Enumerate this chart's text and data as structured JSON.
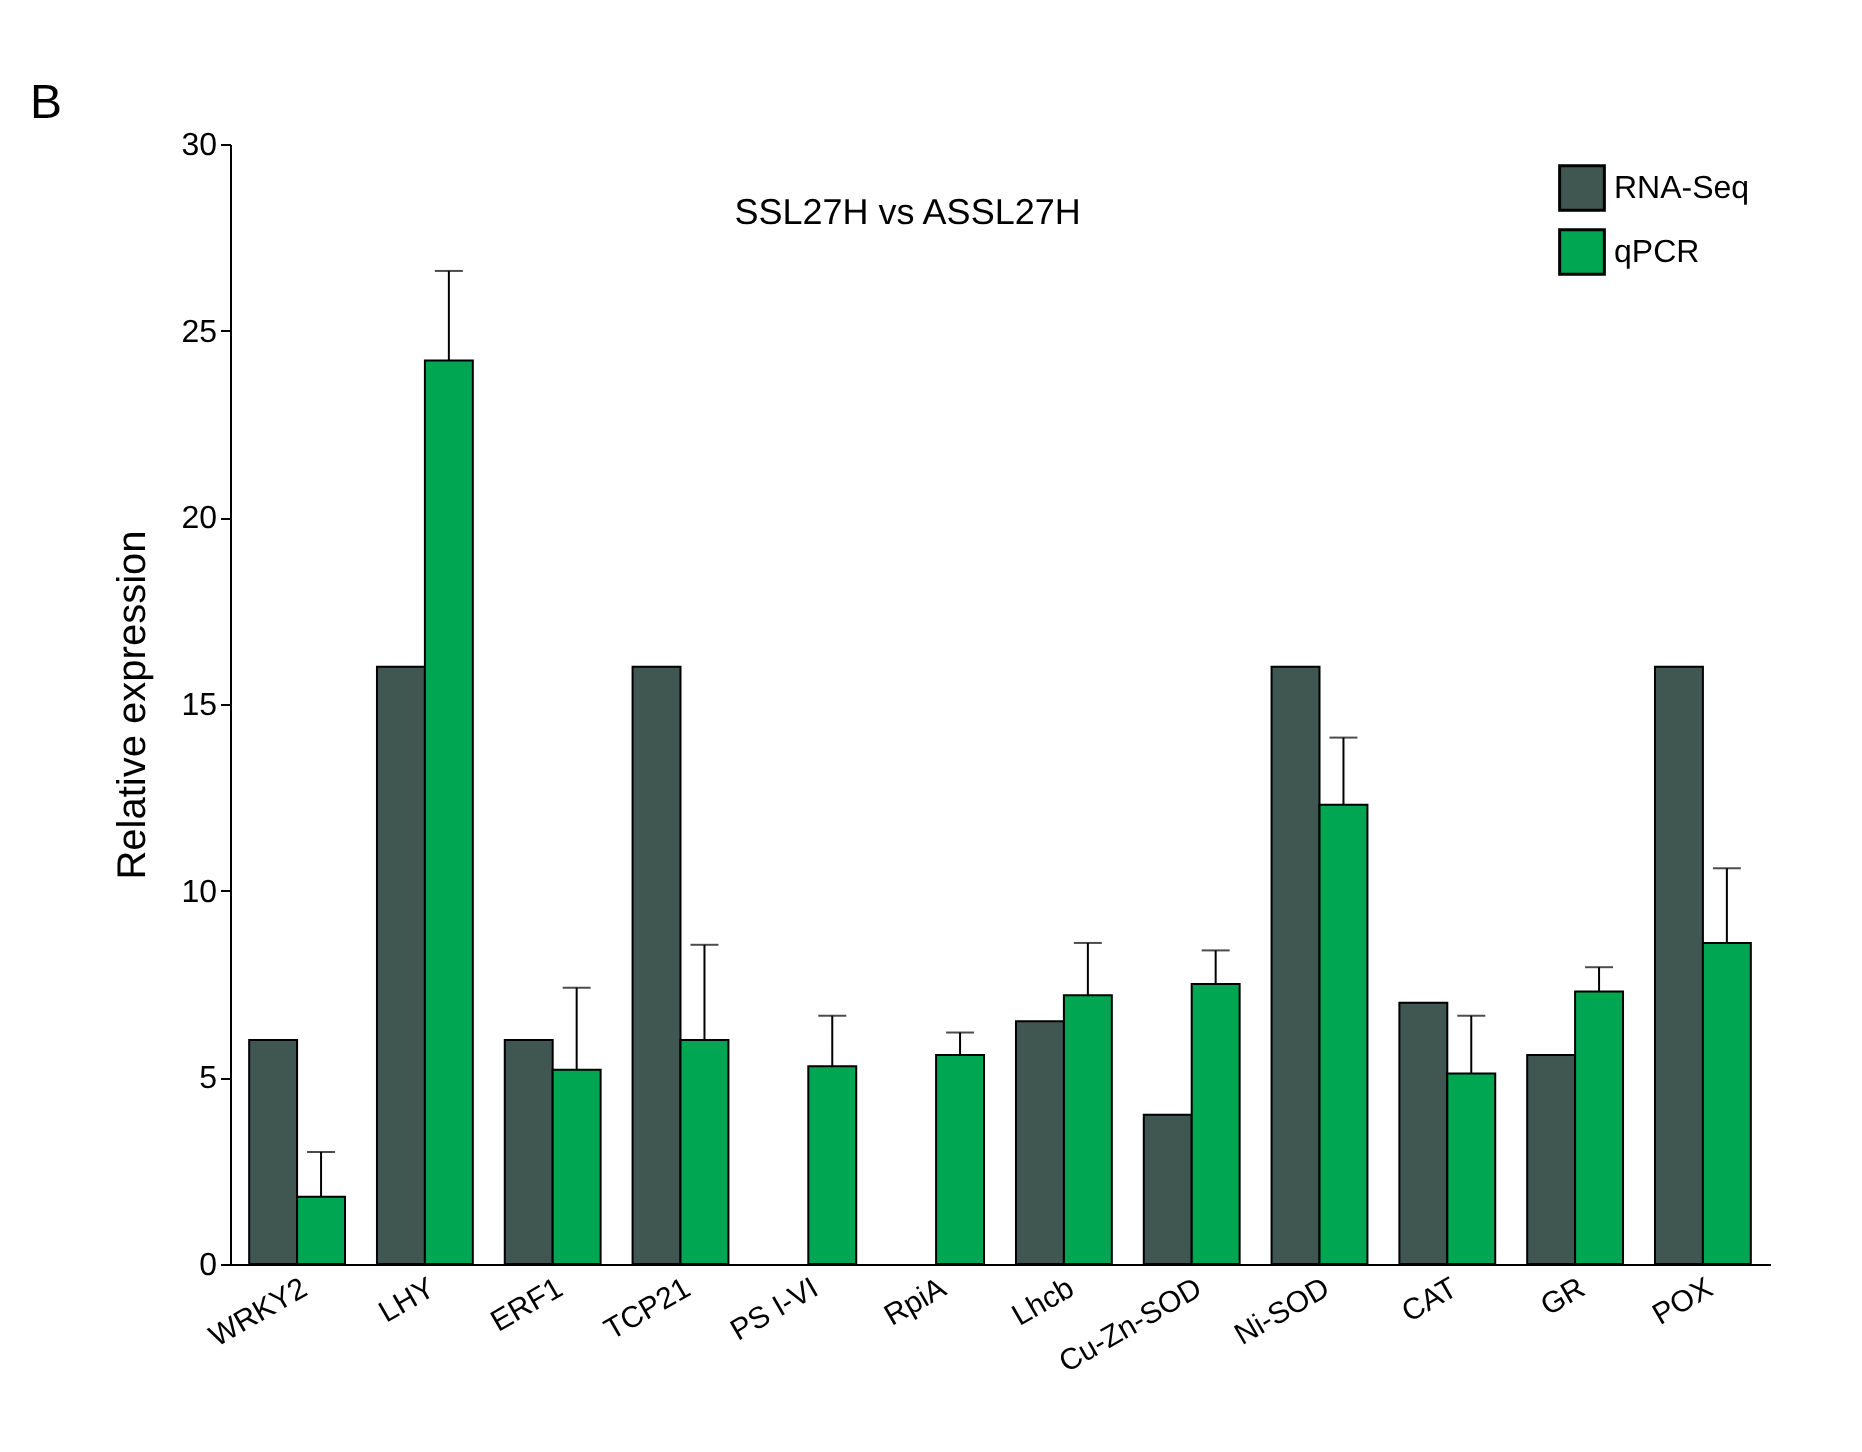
{
  "chart_data": {
    "type": "bar",
    "title": "SSL27H vs ASSL27H",
    "ylabel": "Relative expression",
    "annotations": [
      "B"
    ],
    "categories": [
      "WRKY2",
      "LHY",
      "ERF1",
      "TCP21",
      "PS I-VI",
      "RpiA",
      "Lhcb",
      "Cu-Zn-SOD",
      "Ni-SOD",
      "CAT",
      "GR",
      "POX"
    ],
    "series": [
      {
        "name": "RNA-Seq",
        "color": "#3f5750",
        "values": [
          6,
          16,
          6,
          16,
          null,
          null,
          6.5,
          4,
          16,
          7,
          5.6,
          16
        ]
      },
      {
        "name": "qPCR",
        "color": "#00a651",
        "values": [
          1.8,
          24.2,
          5.2,
          6.0,
          5.3,
          5.6,
          7.2,
          7.5,
          12.3,
          5.1,
          7.3,
          8.6
        ],
        "errors": [
          [
            1.8,
            3.0
          ],
          [
            24.2,
            26.6
          ],
          [
            5.2,
            7.4
          ],
          [
            6.0,
            8.55
          ],
          [
            5.3,
            6.65
          ],
          [
            5.6,
            6.2
          ],
          [
            7.2,
            8.6
          ],
          [
            7.5,
            8.4
          ],
          [
            12.3,
            14.1
          ],
          [
            5.1,
            6.65
          ],
          [
            7.3,
            7.95
          ],
          [
            8.6,
            10.6
          ]
        ]
      }
    ],
    "ylim": [
      0,
      30
    ],
    "yticks": [
      0,
      5,
      10,
      15,
      20,
      25,
      30
    ],
    "grid": false,
    "legend": "top right"
  }
}
